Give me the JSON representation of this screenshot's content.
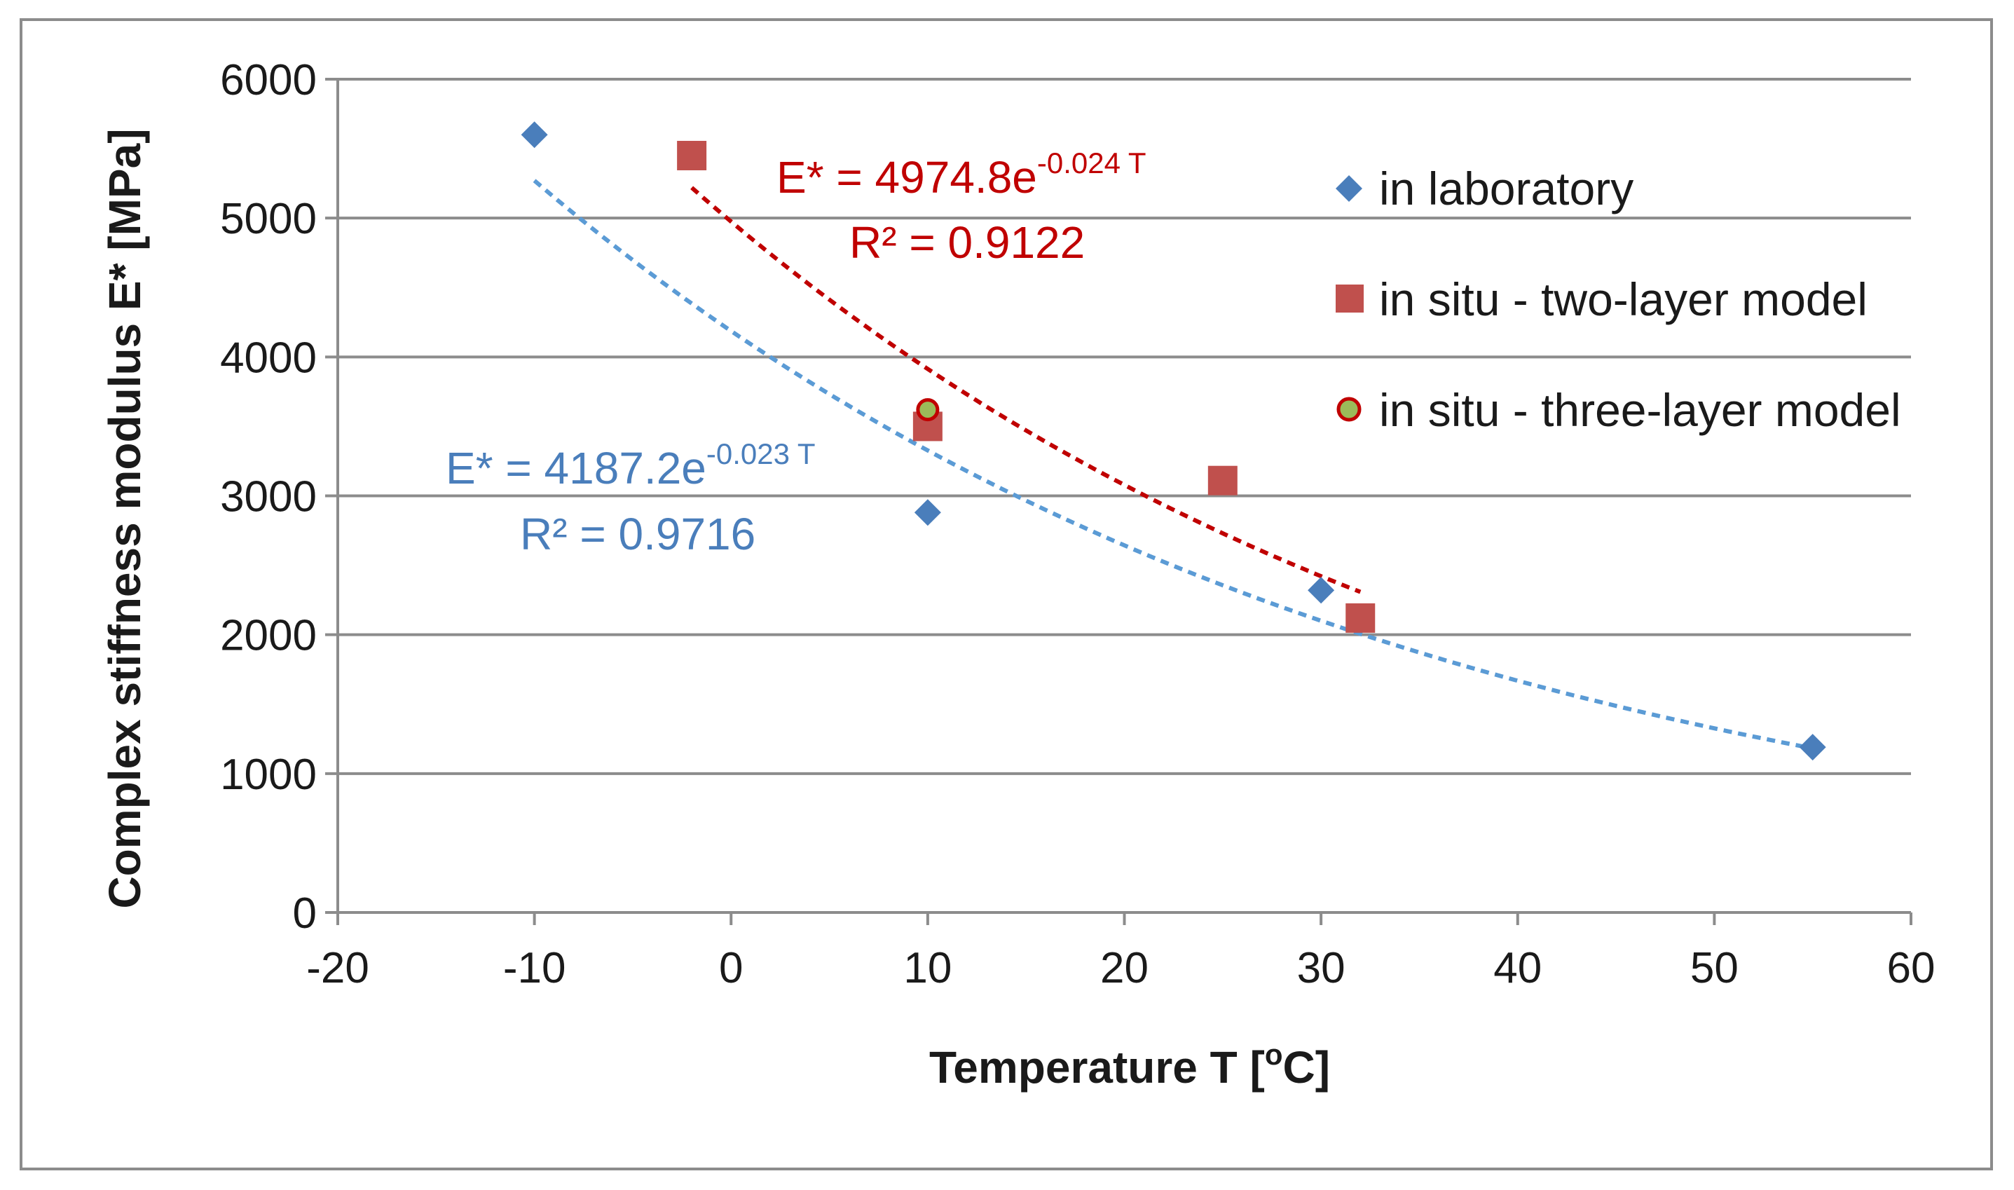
{
  "chart_data": {
    "type": "scatter",
    "title": "",
    "xlabel": "Temperature T [",
    "xlabel_sup": "o",
    "xlabel_end": "C]",
    "ylabel": "Complex stiffness modulus E* [MPa]",
    "xlim": [
      -20,
      60
    ],
    "ylim": [
      0,
      6000
    ],
    "xticks": [
      -20,
      -10,
      0,
      10,
      20,
      30,
      40,
      50,
      60
    ],
    "yticks": [
      0,
      1000,
      2000,
      3000,
      4000,
      5000,
      6000
    ],
    "grid": true,
    "legend_position": "right",
    "series": [
      {
        "name": "in laboratory",
        "marker": "diamond",
        "color": "#4a7ebb",
        "x": [
          -10,
          10,
          30,
          55
        ],
        "y": [
          5600,
          2880,
          2320,
          1190
        ]
      },
      {
        "name": "in situ - two-layer model",
        "marker": "square",
        "color": "#c0504d",
        "x": [
          -2,
          10,
          25,
          32
        ],
        "y": [
          5450,
          3500,
          3110,
          2120
        ]
      },
      {
        "name": "in situ - three-layer model",
        "marker": "circle",
        "color": "#9bbb59",
        "edge_color": "#c00000",
        "x": [
          10
        ],
        "y": [
          3620
        ]
      }
    ],
    "trendlines": [
      {
        "series": "in laboratory",
        "type": "exponential",
        "a": 4187.2,
        "b": -0.023,
        "x_range": [
          -10,
          55
        ],
        "color": "#5b9bd5",
        "equation_prefix": "E* = 4187.2e",
        "equation_exponent": "-0.023 T",
        "r2_label": "R² = 0.9716"
      },
      {
        "series": "in situ - two-layer model",
        "type": "exponential",
        "a": 4974.8,
        "b": -0.024,
        "x_range": [
          -2,
          32
        ],
        "color": "#c00000",
        "equation_prefix": "E* = 4974.8e",
        "equation_exponent": "-0.024 T",
        "r2_label": "R² = 0.9122"
      }
    ]
  }
}
